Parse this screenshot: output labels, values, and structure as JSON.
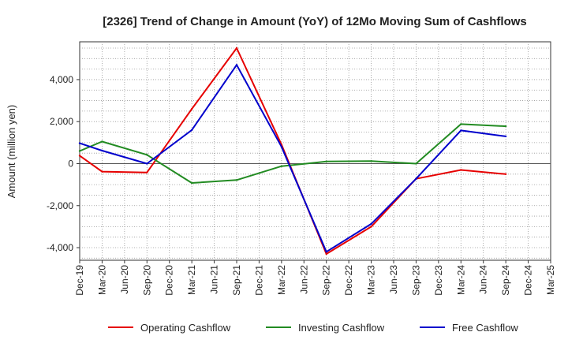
{
  "chart_data": {
    "type": "line",
    "title": "[2326]  Trend of Change in Amount (YoY) of 12Mo Moving Sum of Cashflows",
    "xlabel": "",
    "ylabel": "Amount (million yen)",
    "ylim": [
      -4600,
      5800
    ],
    "yticks": [
      -4000,
      -2000,
      0,
      2000,
      4000
    ],
    "ytick_labels": [
      "-4,000",
      "-2,000",
      "0",
      "2,000",
      "4,000"
    ],
    "categories": [
      "Dec-19",
      "Mar-20",
      "Jun-20",
      "Sep-20",
      "Dec-20",
      "Mar-21",
      "Jun-21",
      "Sep-21",
      "Dec-21",
      "Mar-22",
      "Jun-22",
      "Sep-22",
      "Dec-22",
      "Mar-23",
      "Jun-23",
      "Sep-23",
      "Dec-23",
      "Mar-24",
      "Jun-24",
      "Sep-24",
      "Dec-24",
      "Mar-25"
    ],
    "grid": true,
    "legend_position": "bottom",
    "series": [
      {
        "name": "Operating Cashflow",
        "color": "#e60000",
        "values": [
          380,
          -380,
          null,
          -420,
          null,
          2600,
          null,
          5500,
          null,
          900,
          null,
          -4300,
          null,
          -3000,
          null,
          -720,
          null,
          -300,
          null,
          -500,
          null,
          null
        ]
      },
      {
        "name": "Investing Cashflow",
        "color": "#228b22",
        "values": [
          600,
          1050,
          null,
          420,
          null,
          -920,
          null,
          -780,
          null,
          -120,
          null,
          100,
          null,
          120,
          null,
          0,
          null,
          1880,
          null,
          1780,
          null,
          null
        ]
      },
      {
        "name": "Free Cashflow",
        "color": "#0000cc",
        "values": [
          970,
          620,
          null,
          0,
          null,
          1600,
          null,
          4700,
          null,
          800,
          null,
          -4200,
          null,
          -2870,
          null,
          -720,
          null,
          1580,
          null,
          1300,
          null,
          null
        ]
      }
    ]
  }
}
